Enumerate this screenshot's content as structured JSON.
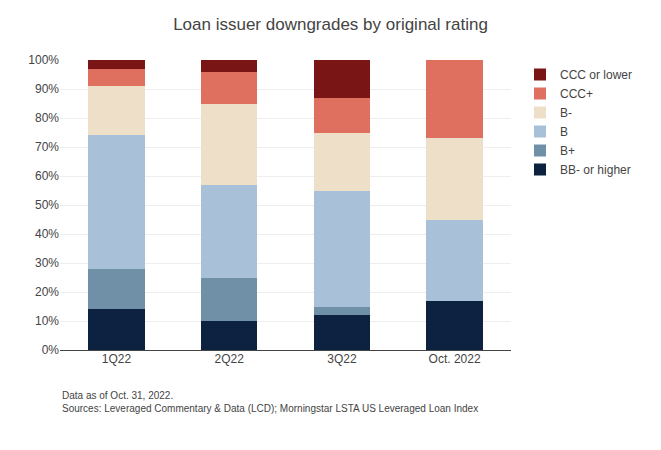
{
  "chart_data": {
    "type": "bar",
    "title": "Loan issuer downgrades by original rating",
    "categories": [
      "1Q22",
      "2Q22",
      "3Q22",
      "Oct. 2022"
    ],
    "series": [
      {
        "name": "BB- or higher",
        "color": "#0d2240",
        "values": [
          14,
          10,
          12,
          17
        ]
      },
      {
        "name": "B+",
        "color": "#7090a8",
        "values": [
          14,
          15,
          3,
          0
        ]
      },
      {
        "name": "B",
        "color": "#a8c0d8",
        "values": [
          46,
          32,
          40,
          28
        ]
      },
      {
        "name": "B-",
        "color": "#eddfc8",
        "values": [
          17,
          28,
          20,
          28
        ]
      },
      {
        "name": "CCC+",
        "color": "#df7060",
        "values": [
          6,
          11,
          12,
          27
        ]
      },
      {
        "name": "CCC or lower",
        "color": "#7a1515",
        "values": [
          3,
          4,
          13,
          0
        ]
      }
    ],
    "stacked": true,
    "ylim": [
      0,
      100
    ],
    "yticks": [
      {
        "value": 0,
        "label": "0%"
      },
      {
        "value": 10,
        "label": "10%"
      },
      {
        "value": 20,
        "label": "20%"
      },
      {
        "value": 30,
        "label": "30%"
      },
      {
        "value": 40,
        "label": "40%"
      },
      {
        "value": 50,
        "label": "50%"
      },
      {
        "value": 60,
        "label": "60%"
      },
      {
        "value": 70,
        "label": "70%"
      },
      {
        "value": 80,
        "label": "80%"
      },
      {
        "value": 90,
        "label": "90%"
      },
      {
        "value": 100,
        "label": "100%"
      }
    ],
    "grid": true,
    "legend": "upper right",
    "annotations": [
      "Data as of Oct. 31, 2022.",
      "Sources: Leveraged Commentary & Data (LCD); Morningstar LSTA US Leveraged Loan Index"
    ]
  }
}
